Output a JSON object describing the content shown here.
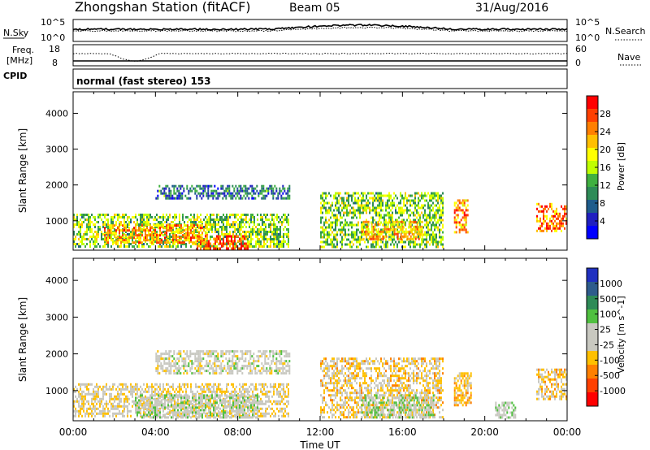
{
  "header": {
    "station": "Zhongshan Station (fitACF)",
    "beam": "Beam 05",
    "date": "31/Aug/2016"
  },
  "panels": {
    "nsky": {
      "label": "N.Sky",
      "left_top": "10^5",
      "left_bottom": "10^0",
      "right_top": "10^5",
      "right_bottom": "10^0",
      "right_label": "N.Search"
    },
    "freq": {
      "label_line1": "Freq.",
      "label_line2": "[MHz]",
      "left_top": "18",
      "left_bottom": "8",
      "right_top": "60",
      "right_bottom": "0",
      "right_label": "Nave"
    },
    "cpid": {
      "label": "CPID",
      "mode_text": "normal (fast stereo) 153"
    }
  },
  "axes": {
    "y_label": "Slant Range [km]",
    "y_ticks": [
      "4000",
      "3000",
      "2000",
      "1000"
    ],
    "x_ticks": [
      "00:00",
      "04:00",
      "08:00",
      "12:00",
      "16:00",
      "20:00",
      "00:00"
    ],
    "x_label": "Time UT"
  },
  "colorbars": {
    "power": {
      "label": "Power [dB]",
      "ticks": [
        "28",
        "24",
        "20",
        "16",
        "12",
        "8",
        "4"
      ],
      "colors": [
        "#ff0000",
        "#ff4000",
        "#ff7f00",
        "#ffbf00",
        "#ffff00",
        "#c0ff00",
        "#40b040",
        "#2e8b57",
        "#1e5c8c",
        "#2020c0",
        "#0000ff"
      ]
    },
    "velocity": {
      "label": "Velocity [m s^-1]",
      "ticks": [
        "1000",
        "500",
        "100",
        "25",
        "-25",
        "-100",
        "-500",
        "-1000"
      ],
      "colors": [
        "#2030c0",
        "#2e5c8c",
        "#2e8b57",
        "#50c040",
        "#c8c8c0",
        "#c8c8c0",
        "#ffc000",
        "#ff8000",
        "#ff4000",
        "#ff0000"
      ]
    }
  },
  "chart_data": [
    {
      "type": "heatmap",
      "title": "Power",
      "xlabel": "Time UT",
      "ylabel": "Slant Range [km]",
      "xlim": [
        0,
        24
      ],
      "ylim": [
        180,
        4600
      ],
      "clim": [
        0,
        30
      ],
      "regions": [
        {
          "t0": 0.0,
          "t1": 10.5,
          "r0": 300,
          "r1": 1200,
          "val": 14
        },
        {
          "t0": 1.5,
          "t1": 6.5,
          "r0": 400,
          "r1": 900,
          "val": 22
        },
        {
          "t0": 6.0,
          "t1": 8.5,
          "r0": 250,
          "r1": 600,
          "val": 26
        },
        {
          "t0": 4.0,
          "t1": 10.5,
          "r0": 1600,
          "r1": 2000,
          "val": 8
        },
        {
          "t0": 12.0,
          "t1": 18.0,
          "r0": 300,
          "r1": 1800,
          "val": 14
        },
        {
          "t0": 14.0,
          "t1": 17.0,
          "r0": 500,
          "r1": 1000,
          "val": 20
        },
        {
          "t0": 18.5,
          "t1": 19.2,
          "r0": 700,
          "r1": 1600,
          "val": 22
        },
        {
          "t0": 22.5,
          "t1": 24.0,
          "r0": 700,
          "r1": 1500,
          "val": 24
        }
      ]
    },
    {
      "type": "heatmap",
      "title": "Velocity",
      "xlabel": "Time UT",
      "ylabel": "Slant Range [km]",
      "xlim": [
        0,
        24
      ],
      "ylim": [
        180,
        4600
      ],
      "clim": [
        -1000,
        1000
      ],
      "regions": [
        {
          "t0": 0.0,
          "t1": 10.5,
          "r0": 300,
          "r1": 1200,
          "val": -150
        },
        {
          "t0": 3.0,
          "t1": 9.0,
          "r0": 300,
          "r1": 900,
          "val": 80
        },
        {
          "t0": 4.0,
          "t1": 10.5,
          "r0": 1500,
          "r1": 2100,
          "val": 0
        },
        {
          "t0": 12.0,
          "t1": 18.0,
          "r0": 300,
          "r1": 1900,
          "val": -200
        },
        {
          "t0": 14.0,
          "t1": 17.5,
          "r0": 300,
          "r1": 900,
          "val": 150
        },
        {
          "t0": 18.5,
          "t1": 19.3,
          "r0": 600,
          "r1": 1500,
          "val": -300
        },
        {
          "t0": 20.5,
          "t1": 21.5,
          "r0": 300,
          "r1": 700,
          "val": 60
        },
        {
          "t0": 22.5,
          "t1": 24.0,
          "r0": 800,
          "r1": 1600,
          "val": -250
        }
      ]
    }
  ]
}
